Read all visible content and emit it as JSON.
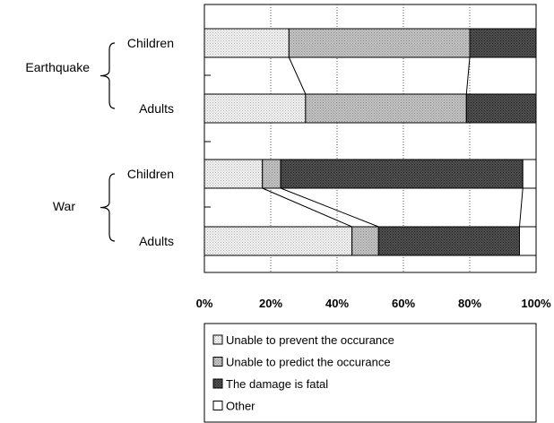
{
  "chart_data": {
    "type": "bar",
    "stacked": true,
    "orientation": "horizontal",
    "percent_stacked": true,
    "xlim": [
      0,
      100
    ],
    "x_ticks": [
      "0%",
      "20%",
      "40%",
      "60%",
      "80%",
      "100%"
    ],
    "grid": "vertical dotted lines at each tick",
    "legend_position": "bottom",
    "groups": [
      {
        "label": "Earthquake",
        "rows": [
          "Children",
          "Adults"
        ]
      },
      {
        "label": "War",
        "rows": [
          "Children",
          "Adults"
        ]
      }
    ],
    "categories": [
      "Earthquake - Children",
      "Earthquake - Adults",
      "War - Children",
      "War - Adults"
    ],
    "row_labels": [
      "Children",
      "Adults",
      "Children",
      "Adults"
    ],
    "series": [
      {
        "name": "Unable to prevent the occurance",
        "values": [
          25.5,
          30.5,
          17.5,
          44.5
        ],
        "color": "#f2f2f2"
      },
      {
        "name": "Unable to predict the occurance",
        "values": [
          54.5,
          48.5,
          5.5,
          8.0
        ],
        "color": "#bdbdbd"
      },
      {
        "name": "The damage is fatal",
        "values": [
          20.0,
          21.0,
          73.0,
          42.5
        ],
        "color": "#4a4a4a"
      },
      {
        "name": "Other",
        "values": [
          0.0,
          0.0,
          4.0,
          5.0
        ],
        "color": "#ffffff"
      }
    ]
  }
}
